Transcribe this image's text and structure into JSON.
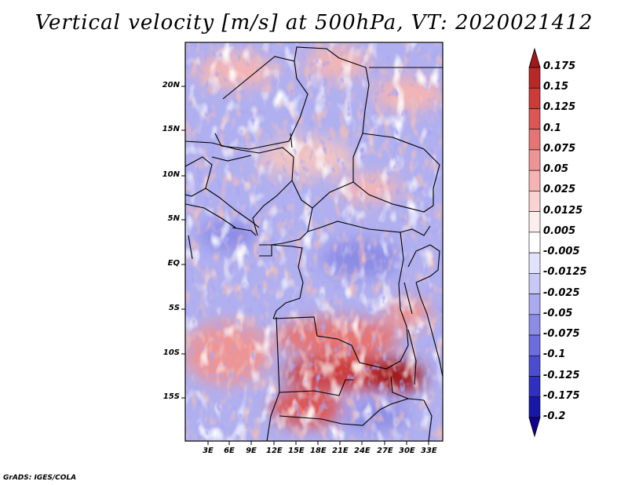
{
  "title": "Vertical velocity [m/s] at 500hPa, VT: 2020021412",
  "footer": "GrADS: IGES/COLA",
  "lat_ticks": [
    "20N",
    "15N",
    "10N",
    "5N",
    "EQ",
    "5S",
    "10S",
    "15S"
  ],
  "lon_ticks": [
    "3E",
    "6E",
    "9E",
    "12E",
    "15E",
    "18E",
    "21E",
    "24E",
    "27E",
    "30E",
    "33E"
  ],
  "colorbar": {
    "labels": [
      "0.175",
      "0.15",
      "0.125",
      "0.1",
      "0.075",
      "0.05",
      "0.025",
      "0.0125",
      "0.005",
      "-0.005",
      "-0.0125",
      "-0.025",
      "-0.05",
      "-0.075",
      "-0.1",
      "-0.125",
      "-0.175",
      "-0.2"
    ],
    "colors": [
      "#a01818",
      "#b82828",
      "#cc3a3a",
      "#dc5656",
      "#e67474",
      "#ee9494",
      "#f4b4b4",
      "#f9d2d2",
      "#fdeeee",
      "#ffffff",
      "#e2e2fa",
      "#c8c8f4",
      "#aaaaee",
      "#8c8ce6",
      "#6c6cdc",
      "#4c4cd0",
      "#3030c0",
      "#1818a8",
      "#100090"
    ]
  }
}
